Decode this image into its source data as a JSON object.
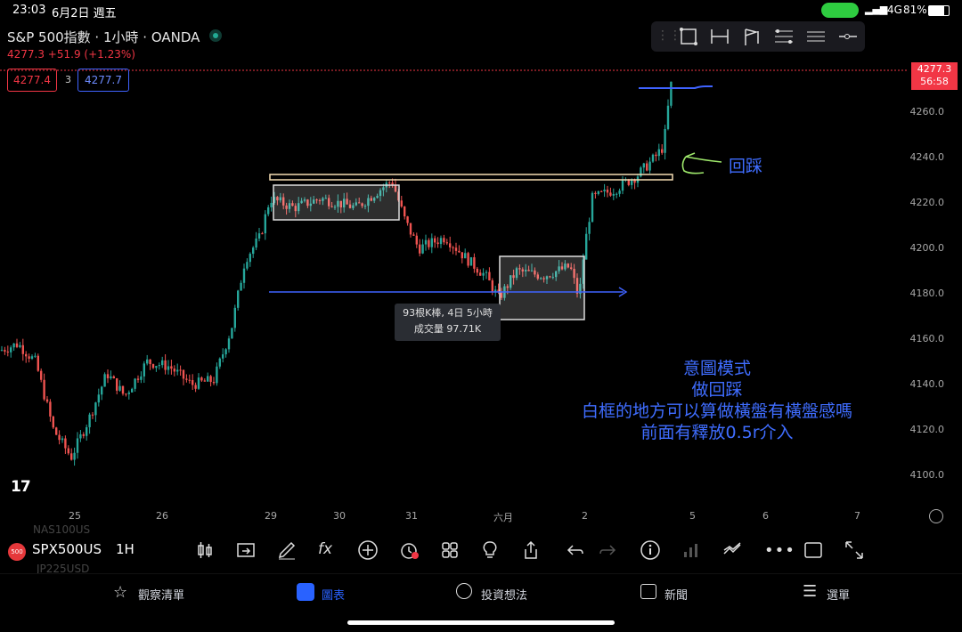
{
  "status_bar": {
    "time": "23:03",
    "date": "6月2日 週五",
    "signal": "4G",
    "battery": "81%"
  },
  "chart_header": {
    "title": "S&P 500指數 · 1小時 · OANDA",
    "change": "4277.3  +51.9 (+1.23%)",
    "sell_price": "4277.4",
    "spread": "3",
    "buy_price": "4277.7"
  },
  "price_tag": {
    "price": "4277.3",
    "countdown": "56:58"
  },
  "tooltip": {
    "line1": "93根K棒, 4日 5小時",
    "line2": "成交量 97.71K"
  },
  "annotations": {
    "pullback_label": "回踩",
    "note_lines": [
      "意圖模式",
      "做回踩",
      "白框的地方可以算做橫盤有橫盤感嗎",
      "前面有釋放0.5r介入"
    ]
  },
  "toolbar": {
    "symbol": "SPX500US",
    "interval": "1H",
    "ghost_symbol_1": "NAS100US",
    "ghost_symbol_2": "JP225USD"
  },
  "tabs": [
    {
      "label": "觀察清單",
      "icon": "star-icon"
    },
    {
      "label": "圖表",
      "icon": "chart-icon"
    },
    {
      "label": "投資想法",
      "icon": "idea-icon"
    },
    {
      "label": "新聞",
      "icon": "news-icon"
    },
    {
      "label": "選單",
      "icon": "menu-icon"
    }
  ],
  "colors": {
    "up": "#26a69a",
    "down": "#ef5350",
    "accent": "#2962ff",
    "annotation": "#3f6dff"
  },
  "chart_data": {
    "type": "candlestick",
    "symbol": "SPX500US",
    "interval": "1H",
    "yticks": [
      4100.0,
      4120.0,
      4140.0,
      4160.0,
      4180.0,
      4200.0,
      4220.0,
      4240.0,
      4260.0
    ],
    "xticks": [
      "25",
      "26",
      "29",
      "30",
      "31",
      "六月",
      "2",
      "5",
      "6",
      "7"
    ],
    "ylim": [
      4090,
      4285
    ],
    "last_price": 4277.3,
    "approx_path": [
      {
        "x": "24",
        "close": 4155
      },
      {
        "x": "25",
        "close": 4130
      },
      {
        "x": "25",
        "close": 4110
      },
      {
        "x": "26",
        "close": 4140
      },
      {
        "x": "26",
        "close": 4145
      },
      {
        "x": "29",
        "close": 4215
      },
      {
        "x": "29",
        "close": 4225
      },
      {
        "x": "30",
        "close": 4220
      },
      {
        "x": "30",
        "close": 4228
      },
      {
        "x": "31",
        "close": 4205
      },
      {
        "x": "31",
        "close": 4195
      },
      {
        "x": "六月",
        "close": 4175
      },
      {
        "x": "六月",
        "close": 4190
      },
      {
        "x": "2",
        "close": 4225
      },
      {
        "x": "2",
        "close": 4240
      },
      {
        "x": "5",
        "close": 4277
      }
    ],
    "horizontal_levels": [
      4230,
      4182,
      4268
    ],
    "range_boxes": [
      {
        "from": "29",
        "to": "30",
        "low": 4213,
        "high": 4227
      },
      {
        "from": "六月",
        "to": "2",
        "low": 4170,
        "high": 4196
      }
    ]
  }
}
